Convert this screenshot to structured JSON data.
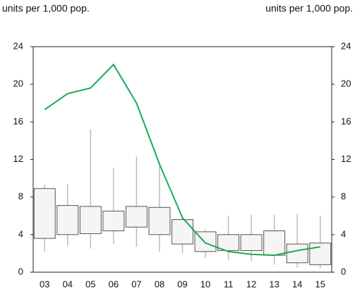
{
  "chart_data": {
    "type": "box",
    "ylabel": "units per 1,000 pop.",
    "y2label": "units per 1,000 pop.",
    "categories": [
      "03",
      "04",
      "05",
      "06",
      "07",
      "08",
      "09",
      "10",
      "11",
      "12",
      "13",
      "14",
      "15"
    ],
    "box": {
      "color": "#f5f5f5",
      "edge_color": "#555555",
      "whisker_color": "#bbbbbb",
      "low": [
        2.2,
        2.8,
        2.5,
        3.0,
        2.7,
        2.2,
        2.0,
        1.5,
        1.3,
        1.2,
        0.8,
        0.5,
        0.4
      ],
      "q1": [
        3.6,
        4.0,
        4.1,
        4.4,
        4.8,
        4.0,
        3.0,
        2.2,
        2.3,
        2.3,
        1.8,
        1.0,
        0.8
      ],
      "q3": [
        8.9,
        7.1,
        7.0,
        6.5,
        7.0,
        6.9,
        5.6,
        4.3,
        4.0,
        4.0,
        4.4,
        3.0,
        3.1
      ],
      "high": [
        9.3,
        9.4,
        15.2,
        11.1,
        12.3,
        11.3,
        6.0,
        4.6,
        6.0,
        6.1,
        6.1,
        6.2,
        6.0
      ]
    },
    "line": {
      "color": "#1aaa55",
      "values": [
        17.3,
        19.0,
        19.6,
        22.1,
        18.0,
        11.5,
        5.8,
        3.1,
        2.2,
        1.9,
        1.8,
        2.3,
        2.7
      ]
    },
    "ylim": [
      0,
      24
    ],
    "yticks": [
      0,
      4,
      8,
      12,
      16,
      20,
      24
    ],
    "y2lim": [
      0,
      24
    ],
    "y2ticks": [
      0,
      4,
      8,
      12,
      16,
      20,
      24
    ]
  }
}
